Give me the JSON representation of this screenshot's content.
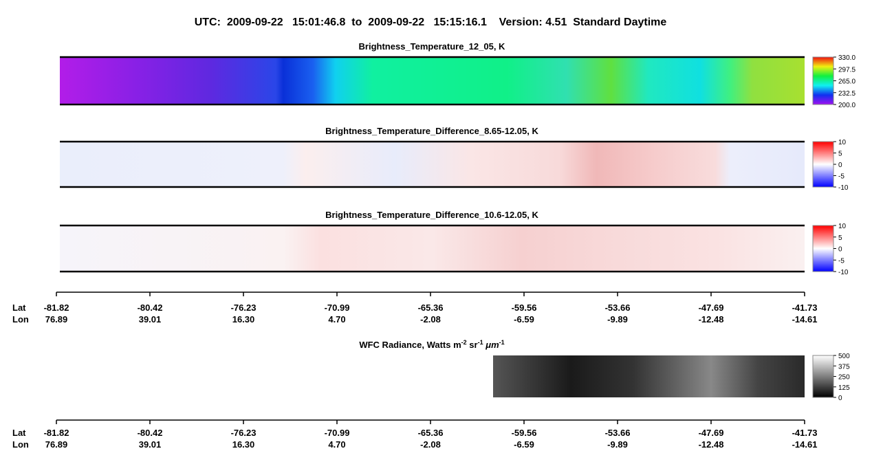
{
  "title": "UTC:  2009-09-22   15:01:46.8  to  2009-09-22   15:15:16.1    Version: 4.51  Standard Daytime",
  "panels": [
    {
      "title": "Brightness_Temperature_12_05, K",
      "range": [
        200,
        330
      ],
      "ticks": [
        {
          "value": 330,
          "label": "330.0"
        },
        {
          "value": 297.5,
          "label": "297.5"
        },
        {
          "value": 265,
          "label": "265.0"
        },
        {
          "value": 232.5,
          "label": "232.5"
        },
        {
          "value": 200,
          "label": "200.0"
        }
      ]
    },
    {
      "title": "Brightness_Temperature_Difference_8.65-12.05, K",
      "range": [
        -10,
        10
      ],
      "ticks": [
        10,
        5,
        0,
        -5,
        -10
      ]
    },
    {
      "title": "Brightness_Temperature_Difference_10.6-12.05, K",
      "range": [
        -10,
        10
      ],
      "ticks": [
        10,
        5,
        0,
        -5,
        -10
      ]
    },
    {
      "title_parts": [
        "WFC Radiance, Watts m",
        "-2",
        " sr",
        "-1",
        " ",
        "μm",
        "-1"
      ],
      "range": [
        0,
        500
      ],
      "ticks": [
        500,
        375,
        250,
        125,
        0
      ]
    }
  ],
  "axes": [
    {
      "lat_label": "Lat",
      "lon_label": "Lon",
      "lat": [
        -81.82,
        -80.42,
        -76.23,
        -70.99,
        -65.36,
        -59.56,
        -53.66,
        -47.69,
        -41.73
      ],
      "lon": [
        76.89,
        39.01,
        {
          "value": 16.3,
          "label": "16.30"
        },
        {
          "value": 4.7,
          "label": "4.70"
        },
        -2.08,
        -6.59,
        -9.89,
        -12.48,
        -14.61
      ]
    },
    {
      "lat_label": "Lat",
      "lon_label": "Lon",
      "lat": [
        -81.82,
        -80.42,
        -76.23,
        -70.99,
        -65.36,
        -59.56,
        -53.66,
        -47.69,
        -41.73
      ],
      "lon": [
        76.89,
        39.01,
        {
          "value": 16.3,
          "label": "16.30"
        },
        {
          "value": 4.7,
          "label": "4.70"
        },
        -2.08,
        -6.59,
        -9.89,
        -12.48,
        -14.61
      ]
    }
  ]
}
